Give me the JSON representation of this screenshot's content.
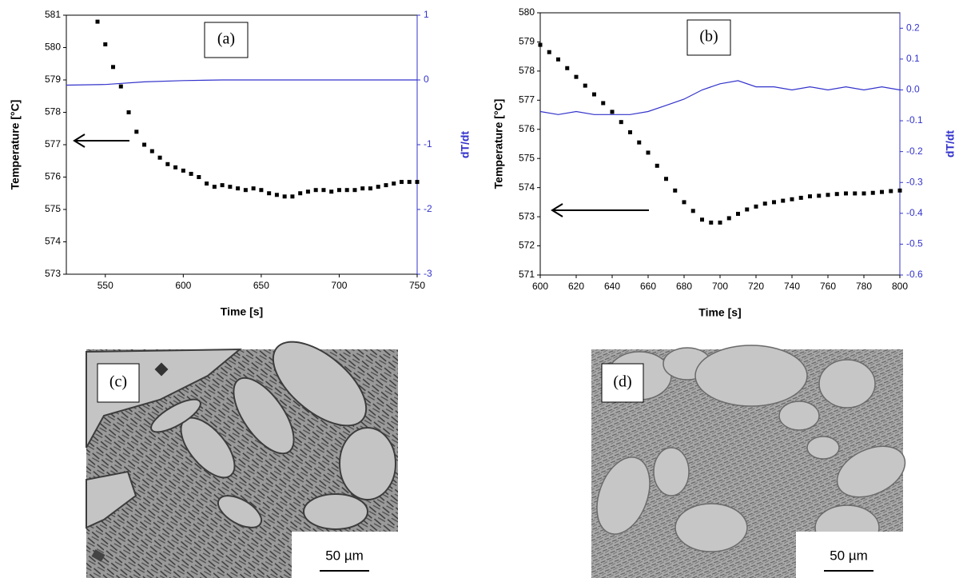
{
  "chart_data": [
    {
      "type": "line",
      "label": "(a)",
      "xlabel": "Time [s]",
      "ylabel": "Temperature [°C]",
      "y2label": "dT/dt",
      "xlim": [
        525,
        750
      ],
      "xticks": [
        550,
        600,
        650,
        700,
        750
      ],
      "ylim": [
        573,
        581
      ],
      "yticks": [
        573,
        574,
        575,
        576,
        577,
        578,
        579,
        580,
        581
      ],
      "y2lim": [
        -3,
        1
      ],
      "y2ticks": [
        -3,
        -2,
        -1,
        0,
        1
      ],
      "y2color": "#3333cc",
      "series": [
        {
          "color": "#000000",
          "marker": "square",
          "x": [
            545,
            550,
            555,
            560,
            565,
            570,
            575,
            580,
            585,
            590,
            595,
            600,
            605,
            610,
            615,
            620,
            625,
            630,
            635,
            640,
            645,
            650,
            655,
            660,
            665,
            670,
            675,
            680,
            685,
            690,
            695,
            700,
            705,
            710,
            715,
            720,
            725,
            730,
            735,
            740,
            745,
            750
          ],
          "values": [
            580.8,
            580.1,
            579.4,
            578.8,
            578.0,
            577.4,
            577.0,
            576.8,
            576.6,
            576.4,
            576.3,
            576.2,
            576.1,
            576.0,
            575.8,
            575.7,
            575.75,
            575.7,
            575.65,
            575.6,
            575.65,
            575.6,
            575.5,
            575.45,
            575.4,
            575.4,
            575.5,
            575.55,
            575.6,
            575.6,
            575.55,
            575.6,
            575.6,
            575.6,
            575.65,
            575.65,
            575.7,
            575.75,
            575.8,
            575.85,
            575.85,
            575.85
          ]
        },
        {
          "color": "#3333cc",
          "axis": "y2",
          "x": [
            525,
            550,
            575,
            600,
            625,
            650,
            675,
            700,
            725,
            750
          ],
          "values": [
            -0.08,
            -0.07,
            -0.03,
            -0.01,
            0,
            0,
            0,
            0,
            0,
            0
          ]
        }
      ]
    },
    {
      "type": "line",
      "label": "(b)",
      "xlabel": "Time [s]",
      "ylabel": "Temperature [°C]",
      "y2label": "dT/dt",
      "xlim": [
        600,
        800
      ],
      "xticks": [
        600,
        620,
        640,
        660,
        680,
        700,
        720,
        740,
        760,
        780,
        800
      ],
      "ylim": [
        571,
        580
      ],
      "yticks": [
        571,
        572,
        573,
        574,
        575,
        576,
        577,
        578,
        579,
        580
      ],
      "y2lim": [
        -0.6,
        0.25
      ],
      "y2ticks": [
        -0.6,
        -0.5,
        -0.4,
        -0.3,
        -0.2,
        -0.1,
        {
          "value": 0,
          "label": "0.0"
        },
        0.1,
        0.2
      ],
      "y2color": "#3333cc",
      "series": [
        {
          "color": "#000000",
          "marker": "square",
          "x": [
            600,
            605,
            610,
            615,
            620,
            625,
            630,
            635,
            640,
            645,
            650,
            655,
            660,
            665,
            670,
            675,
            680,
            685,
            690,
            695,
            700,
            705,
            710,
            715,
            720,
            725,
            730,
            735,
            740,
            745,
            750,
            755,
            760,
            765,
            770,
            775,
            780,
            785,
            790,
            795,
            800
          ],
          "values": [
            578.9,
            578.65,
            578.4,
            578.1,
            577.8,
            577.5,
            577.2,
            576.9,
            576.6,
            576.25,
            575.9,
            575.55,
            575.2,
            574.75,
            574.3,
            573.9,
            573.5,
            573.2,
            572.9,
            572.8,
            572.8,
            572.95,
            573.1,
            573.25,
            573.35,
            573.45,
            573.5,
            573.55,
            573.6,
            573.65,
            573.7,
            573.72,
            573.75,
            573.78,
            573.8,
            573.8,
            573.8,
            573.82,
            573.85,
            573.88,
            573.9
          ]
        },
        {
          "color": "#3333cc",
          "axis": "y2",
          "x": [
            600,
            610,
            620,
            630,
            640,
            650,
            660,
            670,
            680,
            690,
            700,
            710,
            720,
            730,
            740,
            750,
            760,
            770,
            780,
            790,
            800
          ],
          "values": [
            -0.07,
            -0.08,
            -0.07,
            -0.08,
            -0.08,
            -0.08,
            -0.07,
            -0.05,
            -0.03,
            0,
            0.02,
            0.03,
            0.01,
            0.01,
            0,
            0.01,
            0,
            0.01,
            0,
            0.01,
            0
          ]
        }
      ]
    }
  ],
  "panels": [
    {
      "label": "(c)",
      "scale_bar": "50 µm"
    },
    {
      "label": "(d)",
      "scale_bar": "50 µm"
    }
  ]
}
